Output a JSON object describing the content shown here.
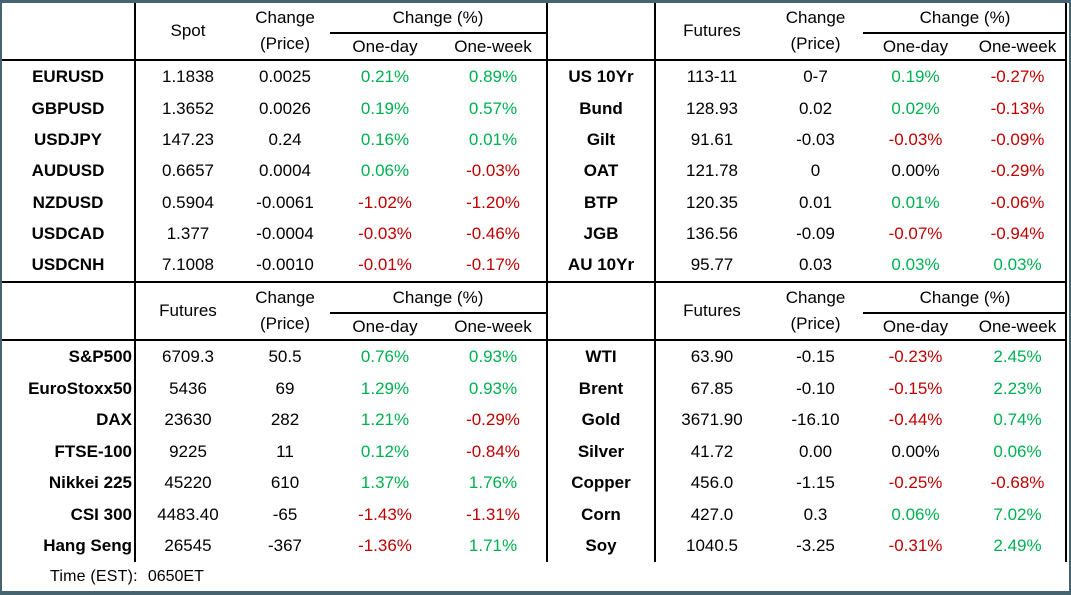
{
  "colors": {
    "positive": "#00B050",
    "negative": "#C00000",
    "zero": "#000000",
    "frame_border": "#456470",
    "grid_line": "#000000"
  },
  "header_labels": {
    "change_price_line1": "Change",
    "change_price_line2": "(Price)",
    "change_pct": "Change (%)",
    "one_day": "One-day",
    "one_week": "One-week"
  },
  "quadrants": [
    {
      "id": "fx-spot",
      "value_header": "Spot",
      "rows": [
        {
          "label": "EURUSD",
          "value": "1.1838",
          "change": "0.0025",
          "one_day": "0.21%",
          "one_week": "0.89%"
        },
        {
          "label": "GBPUSD",
          "value": "1.3652",
          "change": "0.0026",
          "one_day": "0.19%",
          "one_week": "0.57%"
        },
        {
          "label": "USDJPY",
          "value": "147.23",
          "change": "0.24",
          "one_day": "0.16%",
          "one_week": "0.01%"
        },
        {
          "label": "AUDUSD",
          "value": "0.6657",
          "change": "0.0004",
          "one_day": "0.06%",
          "one_week": "-0.03%"
        },
        {
          "label": "NZDUSD",
          "value": "0.5904",
          "change": "-0.0061",
          "one_day": "-1.02%",
          "one_week": "-1.20%"
        },
        {
          "label": "USDCAD",
          "value": "1.377",
          "change": "-0.0004",
          "one_day": "-0.03%",
          "one_week": "-0.46%"
        },
        {
          "label": "USDCNH",
          "value": "7.1008",
          "change": "-0.0010",
          "one_day": "-0.01%",
          "one_week": "-0.17%"
        }
      ]
    },
    {
      "id": "bond-futures",
      "value_header": "Futures",
      "rows": [
        {
          "label": "US 10Yr",
          "value": "113-11",
          "change": "0-7",
          "one_day": "0.19%",
          "one_week": "-0.27%"
        },
        {
          "label": "Bund",
          "value": "128.93",
          "change": "0.02",
          "one_day": "0.02%",
          "one_week": "-0.13%"
        },
        {
          "label": "Gilt",
          "value": "91.61",
          "change": "-0.03",
          "one_day": "-0.03%",
          "one_week": "-0.09%"
        },
        {
          "label": "OAT",
          "value": "121.78",
          "change": "0",
          "one_day": "0.00%",
          "one_week": "-0.29%"
        },
        {
          "label": "BTP",
          "value": "120.35",
          "change": "0.01",
          "one_day": "0.01%",
          "one_week": "-0.06%"
        },
        {
          "label": "JGB",
          "value": "136.56",
          "change": "-0.09",
          "one_day": "-0.07%",
          "one_week": "-0.94%"
        },
        {
          "label": "AU 10Yr",
          "value": "95.77",
          "change": "0.03",
          "one_day": "0.03%",
          "one_week": "0.03%"
        }
      ]
    },
    {
      "id": "equity-futures",
      "value_header": "Futures",
      "rows": [
        {
          "label": "S&P500",
          "value": "6709.3",
          "change": "50.5",
          "one_day": "0.76%",
          "one_week": "0.93%"
        },
        {
          "label": "EuroStoxx50",
          "value": "5436",
          "change": "69",
          "one_day": "1.29%",
          "one_week": "0.93%"
        },
        {
          "label": "DAX",
          "value": "23630",
          "change": "282",
          "one_day": "1.21%",
          "one_week": "-0.29%"
        },
        {
          "label": "FTSE-100",
          "value": "9225",
          "change": "11",
          "one_day": "0.12%",
          "one_week": "-0.84%"
        },
        {
          "label": "Nikkei 225",
          "value": "45220",
          "change": "610",
          "one_day": "1.37%",
          "one_week": "1.76%"
        },
        {
          "label": "CSI 300",
          "value": "4483.40",
          "change": "-65",
          "one_day": "-1.43%",
          "one_week": "-1.31%"
        },
        {
          "label": "Hang Seng",
          "value": "26545",
          "change": "-367",
          "one_day": "-1.36%",
          "one_week": "1.71%"
        }
      ]
    },
    {
      "id": "commodity-futures",
      "value_header": "Futures",
      "rows": [
        {
          "label": "WTI",
          "value": "63.90",
          "change": "-0.15",
          "one_day": "-0.23%",
          "one_week": "2.45%"
        },
        {
          "label": "Brent",
          "value": "67.85",
          "change": "-0.10",
          "one_day": "-0.15%",
          "one_week": "2.23%"
        },
        {
          "label": "Gold",
          "value": "3671.90",
          "change": "-16.10",
          "one_day": "-0.44%",
          "one_week": "0.74%"
        },
        {
          "label": "Silver",
          "value": "41.72",
          "change": "0.00",
          "one_day": "0.00%",
          "one_week": "0.06%"
        },
        {
          "label": "Copper",
          "value": "456.0",
          "change": "-1.15",
          "one_day": "-0.25%",
          "one_week": "-0.68%"
        },
        {
          "label": "Corn",
          "value": "427.0",
          "change": "0.3",
          "one_day": "0.06%",
          "one_week": "7.02%"
        },
        {
          "label": "Soy",
          "value": "1040.5",
          "change": "-3.25",
          "one_day": "-0.31%",
          "one_week": "2.49%"
        }
      ]
    }
  ],
  "footer": {
    "time_label": "Time (EST):",
    "time_value": "0650ET"
  }
}
